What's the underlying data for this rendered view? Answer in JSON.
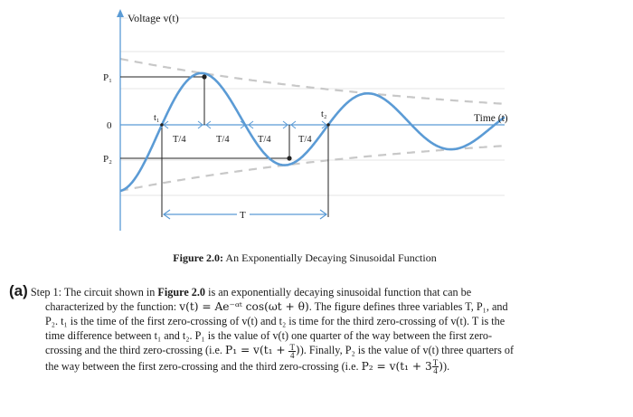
{
  "figure": {
    "y_axis_label": "Voltage  v(t)",
    "x_axis_label": "Time (t)",
    "y_tick_p1": "P₁",
    "y_tick_zero": "0",
    "y_tick_p2": "P₂",
    "t1_label": "t₁",
    "t2_label": "t₂",
    "quarter_labels": [
      "T/4",
      "T/4",
      "T/4",
      "T/4"
    ],
    "period_label": "T",
    "curve_color": "#5b9bd5",
    "envelope_color": "#c8c8c8",
    "axis_color": "#5b9bd5"
  },
  "caption": {
    "bold": "Figure 2.0:",
    "text": " An Exponentially Decaying Sinusoidal Function"
  },
  "problem": {
    "part_label": "(a)",
    "line1": "Step 1: The circuit shown in ",
    "line1_bold": "Figure 2.0",
    "line1_end": " is an exponentially decaying sinusoidal function that can be",
    "line2_start": "characterized by the function: ",
    "line2_formula": "v(t) = Ae⁻ᵅᵗ cos(ωt + θ)",
    "line2_end": ". The figure defines three variables T, P₁, and",
    "line3": "P₂. t₁ is the time of the first zero-crossing of v(t) and t₂ is time for the third zero-crossing of v(t). T is the",
    "line4": "time difference between t₁ and t₂. P₁ is the value of v(t) one quarter of the way between the first zero-",
    "line5_start": "crossing and the third zero-crossing (i.e. ",
    "line5_formula_a": "P₁ = v(t₁ + ",
    "line5_formula_b": ")",
    "line5_end": "). Finally, P₂ is the value of v(t) three quarters of",
    "line6_start": "the way between the first zero-crossing and the third zero-crossing (i.e. ",
    "line6_formula_a": "P₂ = v(t₁ + 3",
    "line6_formula_b": ")",
    "line6_end": ").",
    "frac_num": "T",
    "frac_den": "4"
  }
}
